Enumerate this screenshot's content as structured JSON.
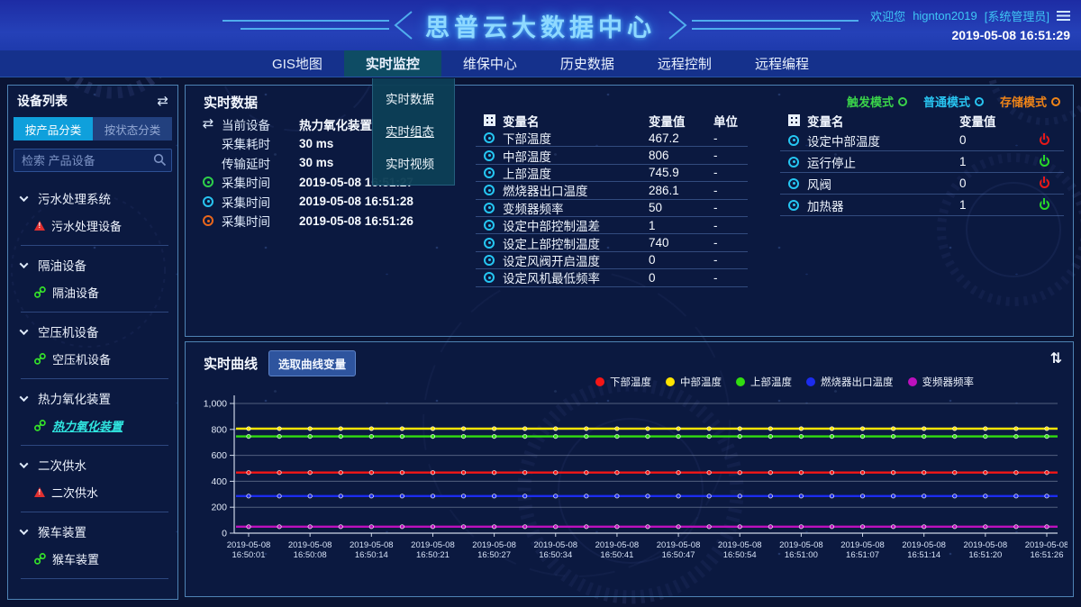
{
  "header": {
    "title": "思普云大数据中心",
    "welcome_prefix": "欢迎您",
    "username": "hignton2019",
    "role": "[系统管理员]",
    "datetime": "2019-05-08 16:51:29"
  },
  "nav": {
    "items": [
      {
        "label": "GIS地图",
        "active": false
      },
      {
        "label": "实时监控",
        "active": true
      },
      {
        "label": "维保中心",
        "active": false
      },
      {
        "label": "历史数据",
        "active": false
      },
      {
        "label": "远程控制",
        "active": false
      },
      {
        "label": "远程编程",
        "active": false
      }
    ],
    "dropdown": {
      "items": [
        "实时数据",
        "实时组态",
        "实时视频"
      ],
      "hovered_item": "实时组态"
    }
  },
  "sidebar": {
    "title": "设备列表",
    "tabs": [
      {
        "label": "按产品分类",
        "active": true
      },
      {
        "label": "按状态分类",
        "active": false
      }
    ],
    "search_placeholder": "检索 产品设备",
    "groups": [
      {
        "label": "污水处理系统",
        "children": [
          {
            "label": "污水处理设备",
            "icon": "alarm-triangle",
            "selected": false
          }
        ]
      },
      {
        "label": "隔油设备",
        "children": [
          {
            "label": "隔油设备",
            "icon": "chain-link",
            "selected": false
          }
        ]
      },
      {
        "label": "空压机设备",
        "children": [
          {
            "label": "空压机设备",
            "icon": "chain-link",
            "selected": false
          }
        ]
      },
      {
        "label": "热力氧化装置",
        "children": [
          {
            "label": "热力氧化装置",
            "icon": "chain-link",
            "selected": true
          }
        ]
      },
      {
        "label": "二次供水",
        "children": [
          {
            "label": "二次供水",
            "icon": "alarm-triangle",
            "selected": false
          }
        ]
      },
      {
        "label": "猴车装置",
        "children": [
          {
            "label": "猴车装置",
            "icon": "chain-link",
            "selected": false
          }
        ]
      }
    ]
  },
  "realtime_panel": {
    "title": "实时数据",
    "modes": [
      {
        "label": "触发模式",
        "color": "#3ad44a"
      },
      {
        "label": "普通模式",
        "color": "#28c4f0"
      },
      {
        "label": "存储模式",
        "color": "#ef8418"
      }
    ],
    "device_info": [
      {
        "icon": "swap-arrows",
        "icon_color": "",
        "label": "当前设备",
        "value": "热力氧化装置"
      },
      {
        "icon": "",
        "icon_color": "",
        "label": "采集耗时",
        "value": "30 ms"
      },
      {
        "icon": "",
        "icon_color": "",
        "label": "传输延时",
        "value": "30 ms"
      },
      {
        "icon": "donut",
        "icon_color": "#2ed04a",
        "label": "采集时间",
        "value": "2019-05-08 16:51:27"
      },
      {
        "icon": "donut",
        "icon_color": "#28c4f0",
        "label": "采集时间",
        "value": "2019-05-08 16:51:28"
      },
      {
        "icon": "donut",
        "icon_color": "#e8661c",
        "label": "采集时间",
        "value": "2019-05-08 16:51:26"
      }
    ],
    "analog_table": {
      "headers": [
        "变量名",
        "变量值",
        "单位"
      ],
      "rows": [
        {
          "name": "下部温度",
          "value": "467.2",
          "unit": "-"
        },
        {
          "name": "中部温度",
          "value": "806",
          "unit": "-"
        },
        {
          "name": "上部温度",
          "value": "745.9",
          "unit": "-"
        },
        {
          "name": "燃烧器出口温度",
          "value": "286.1",
          "unit": "-"
        },
        {
          "name": "变频器频率",
          "value": "50",
          "unit": "-"
        },
        {
          "name": "设定中部控制温差",
          "value": "1",
          "unit": "-"
        },
        {
          "name": "设定上部控制温度",
          "value": "740",
          "unit": "-"
        },
        {
          "name": "设定风阀开启温度",
          "value": "0",
          "unit": "-"
        },
        {
          "name": "设定风机最低频率",
          "value": "0",
          "unit": "-"
        }
      ]
    },
    "switch_table": {
      "headers": [
        "变量名",
        "变量值"
      ],
      "rows": [
        {
          "name": "设定中部温度",
          "value": "0",
          "state": "off",
          "state_color": "#e81818"
        },
        {
          "name": "运行停止",
          "value": "1",
          "state": "on",
          "state_color": "#28d828"
        },
        {
          "name": "风阀",
          "value": "0",
          "state": "off",
          "state_color": "#e81818"
        },
        {
          "name": "加热器",
          "value": "1",
          "state": "on",
          "state_color": "#28d828"
        }
      ]
    }
  },
  "curve_panel": {
    "title": "实时曲线",
    "select_button": "选取曲线变量"
  },
  "chart_data": {
    "type": "line",
    "title": "实时曲线",
    "x_date": "2019-05-08",
    "x": [
      "16:50:01",
      "16:50:08",
      "16:50:14",
      "16:50:21",
      "16:50:27",
      "16:50:34",
      "16:50:41",
      "16:50:47",
      "16:50:54",
      "16:51:00",
      "16:51:07",
      "16:51:14",
      "16:51:20",
      "16:51:26"
    ],
    "series": [
      {
        "name": "下部温度",
        "color": "#f41616",
        "values": [
          467.2,
          467.2,
          467.2,
          467.2,
          467.2,
          467.2,
          467.2,
          467.2,
          467.2,
          467.2,
          467.2,
          467.2,
          467.2,
          467.2
        ]
      },
      {
        "name": "中部温度",
        "color": "#ffe400",
        "values": [
          806,
          806,
          806,
          806,
          806,
          806,
          806,
          806,
          806,
          806,
          806,
          806,
          806,
          806
        ]
      },
      {
        "name": "上部温度",
        "color": "#32dd10",
        "values": [
          745.9,
          745.9,
          745.9,
          745.9,
          745.9,
          745.9,
          745.9,
          745.9,
          745.9,
          745.9,
          745.9,
          745.9,
          745.9,
          745.9
        ]
      },
      {
        "name": "燃烧器出口温度",
        "color": "#1c2cee",
        "values": [
          286.1,
          286.1,
          286.1,
          286.1,
          286.1,
          286.1,
          286.1,
          286.1,
          286.1,
          286.1,
          286.1,
          286.1,
          286.1,
          286.1
        ]
      },
      {
        "name": "变频器频率",
        "color": "#bd10bd",
        "values": [
          50,
          50,
          50,
          50,
          50,
          50,
          50,
          50,
          50,
          50,
          50,
          50,
          50,
          50
        ]
      }
    ],
    "ylim": [
      0,
      1000
    ],
    "yticks": [
      "0",
      "200",
      "400",
      "600",
      "800",
      "1,000"
    ],
    "grid": true,
    "legend_position": "top-right"
  }
}
